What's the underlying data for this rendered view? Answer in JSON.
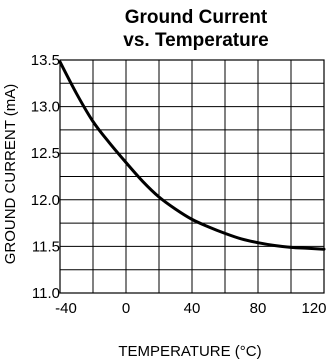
{
  "chart_data": {
    "type": "line",
    "title_lines": [
      "Ground Current",
      "vs. Temperature"
    ],
    "xlabel": "TEMPERATURE (°C)",
    "ylabel": "GROUND CURRENT (mA)",
    "xlim": [
      -40,
      120
    ],
    "ylim": [
      11.0,
      13.5
    ],
    "x_ticks": [
      -40,
      0,
      40,
      80,
      120
    ],
    "x_tick_labels": [
      "-40",
      "0",
      "40",
      "80",
      "120"
    ],
    "y_ticks": [
      11.0,
      11.5,
      12.0,
      12.5,
      13.0,
      13.5
    ],
    "y_tick_labels": [
      "11.0",
      "11.5",
      "12.0",
      "12.5",
      "13.0",
      "13.5"
    ],
    "x_grid_step": 20,
    "y_grid_step": 0.25,
    "grid": true,
    "series": [
      {
        "x": [
          -40,
          -30,
          -20,
          -10,
          0,
          10,
          20,
          30,
          40,
          50,
          60,
          70,
          80,
          90,
          100,
          110,
          120
        ],
        "y": [
          13.48,
          13.14,
          12.84,
          12.61,
          12.4,
          12.2,
          12.03,
          11.9,
          11.79,
          11.71,
          11.64,
          11.58,
          11.54,
          11.51,
          11.49,
          11.48,
          11.47
        ]
      }
    ]
  }
}
